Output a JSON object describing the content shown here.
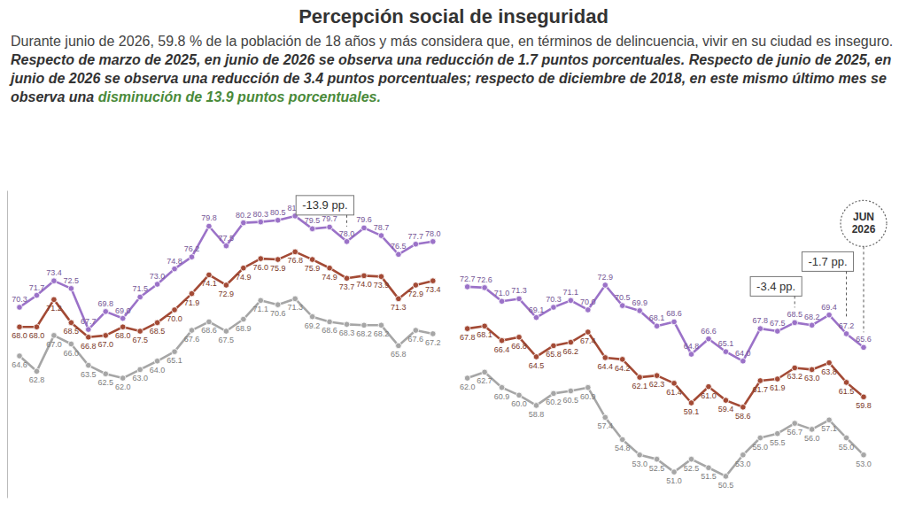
{
  "chart_data": {
    "type": "line",
    "title": "Percepción social de inseguridad",
    "subtitle": [
      "Durante junio de 2026, 59.8 % de la población de 18 años y más considera que, en términos de delincuencia, vivir en su ciudad es inseguro.",
      "Respecto de marzo de 2025, en junio de 2026 se observa una reducción de 1.7 puntos porcentuales.",
      "Respecto de junio de 2025, en junio de 2026 se observa una reducción de 3.4 puntos porcentuales; respecto de diciembre de 2018, en este mismo último mes se observa una",
      "disminución de 13.9 puntos porcentuales."
    ],
    "categories": [
      null,
      null,
      null,
      null,
      null,
      null,
      null,
      null,
      null,
      null,
      null,
      null,
      null,
      null,
      null,
      null,
      null,
      null,
      null,
      null,
      null,
      null,
      null,
      null,
      null,
      null,
      null,
      null,
      null,
      null,
      null,
      null,
      null,
      null,
      null,
      null,
      null,
      null,
      null,
      null,
      null,
      null,
      null,
      null,
      null,
      null,
      null,
      null,
      null,
      null
    ],
    "series": [
      {
        "color": "#9b72c8",
        "values": [
          70.3,
          71.7,
          73.4,
          72.5,
          67.7,
          69.8,
          69.0,
          71.5,
          73.0,
          74.8,
          76.2,
          79.8,
          77.5,
          80.2,
          80.3,
          80.5,
          81.0,
          79.5,
          79.7,
          78.0,
          79.6,
          78.7,
          76.5,
          77.7,
          78.0,
          null,
          72.7,
          72.6,
          71.0,
          71.3,
          69.1,
          70.3,
          71.1,
          70.0,
          72.9,
          70.5,
          69.9,
          68.1,
          68.6,
          64.8,
          66.6,
          65.1,
          64.0,
          67.8,
          67.5,
          68.5,
          68.2,
          69.4,
          67.2,
          65.6
        ],
        "value_labels": [
          "70.3",
          "71.7",
          "73.4",
          "72.5",
          "67.7",
          "69.8",
          "69.0",
          "71.5",
          "73.0",
          "74.8",
          "76.2",
          "79.8",
          "77.5",
          "80.2",
          "80.3",
          "80.5",
          "81.0",
          "79.5",
          "79.7",
          "78.0",
          "79.6",
          "78.7",
          "76.5",
          "77.7",
          "78.0",
          null,
          "72.7",
          "72.6",
          "71.0",
          "71.3",
          "69.1",
          "70.3",
          "71.1",
          "70.0",
          "72.9",
          "70.5",
          "69.9",
          "68.1",
          "68.6",
          "64.8",
          "66.6",
          "65.1",
          "64.0",
          "67.8",
          "67.5",
          "68.5",
          "68.2",
          "69.4",
          "67.2",
          "65.6"
        ]
      },
      {
        "color": "#a34a35",
        "values": [
          68.0,
          68.0,
          71.2,
          68.5,
          66.8,
          67.0,
          68.0,
          67.5,
          68.5,
          70.0,
          71.9,
          74.1,
          72.9,
          74.9,
          76.0,
          75.9,
          76.8,
          75.9,
          74.9,
          73.7,
          74.0,
          73.9,
          71.3,
          72.9,
          73.4,
          null,
          67.8,
          68.1,
          66.4,
          66.8,
          64.5,
          65.8,
          66.2,
          67.4,
          64.4,
          64.2,
          62.1,
          62.3,
          61.4,
          59.1,
          61.0,
          59.4,
          58.6,
          61.7,
          61.9,
          63.2,
          63.0,
          63.8,
          61.5,
          59.8
        ],
        "value_labels": [
          "68.0",
          "68.0",
          "71.2",
          "68.5",
          "66.8",
          "67.0",
          "68.0",
          "67.5",
          "68.5",
          "70.0",
          "71.9",
          "74.1",
          "72.9",
          "74.9",
          "76.0",
          "75.9",
          "76.8",
          "75.9",
          "74.9",
          "73.7",
          "74.0",
          "73.9",
          "71.3",
          "72.9",
          "73.4",
          null,
          "67.8",
          "68.1",
          "66.4",
          "66.8",
          "64.5",
          "65.8",
          "66.2",
          "67.4",
          "64.4",
          "64.2",
          "62.1",
          "62.3",
          "61.4",
          "59.1",
          "61.0",
          "59.4",
          "58.6",
          "61.7",
          "61.9",
          "63.2",
          "63.0",
          "63.8",
          "61.5",
          "59.8"
        ]
      },
      {
        "color": "#a6a6a6",
        "values": [
          64.6,
          62.8,
          67.0,
          66.0,
          63.5,
          62.5,
          62.0,
          63.0,
          64.0,
          65.1,
          67.6,
          68.6,
          67.5,
          68.9,
          71.1,
          70.6,
          71.3,
          69.2,
          68.6,
          68.3,
          68.2,
          68.2,
          65.8,
          67.6,
          67.2,
          null,
          62.0,
          62.7,
          60.9,
          60.0,
          58.8,
          60.2,
          60.5,
          60.9,
          57.4,
          54.8,
          53.0,
          52.5,
          51.0,
          52.5,
          51.5,
          50.5,
          53.0,
          55.0,
          55.5,
          56.7,
          56.0,
          57.1,
          55.0,
          53.0
        ],
        "value_labels": [
          "64.6",
          "62.8",
          "67.0",
          "66.0",
          "63.5",
          "62.5",
          "62.0",
          "63.0",
          "64.0",
          "65.1",
          "67.6",
          "68.6",
          "67.5",
          "68.9",
          "71.1",
          "70.6",
          "71.3",
          "69.2",
          "68.6",
          "68.3",
          "68.2",
          "68.2",
          "65.8",
          "67.6",
          "67.2",
          null,
          "62.0",
          "62.7",
          "60.9",
          "60.0",
          "58.8",
          "60.2",
          "60.5",
          "60.9",
          "57.4",
          "54.8",
          "53.0",
          "52.5",
          "51.0",
          "52.5",
          "51.5",
          "50.5",
          "53.0",
          "55.0",
          "55.5",
          "56.7",
          "56.0",
          "57.1",
          "55.0",
          "53.0"
        ]
      }
    ],
    "annotations": [
      {
        "text": "-13.9 pp.",
        "index": 19
      },
      {
        "text": "-3.4 pp.",
        "index": 45
      },
      {
        "text": "-1.7 pp.",
        "index": 48
      },
      {
        "text": "JUN 2026",
        "index": 49,
        "marker": "circle"
      }
    ],
    "ylim": [
      48,
      84
    ],
    "yticks": [],
    "tick_labels": false,
    "data_labels": true,
    "marker": "circle",
    "grid": false
  }
}
